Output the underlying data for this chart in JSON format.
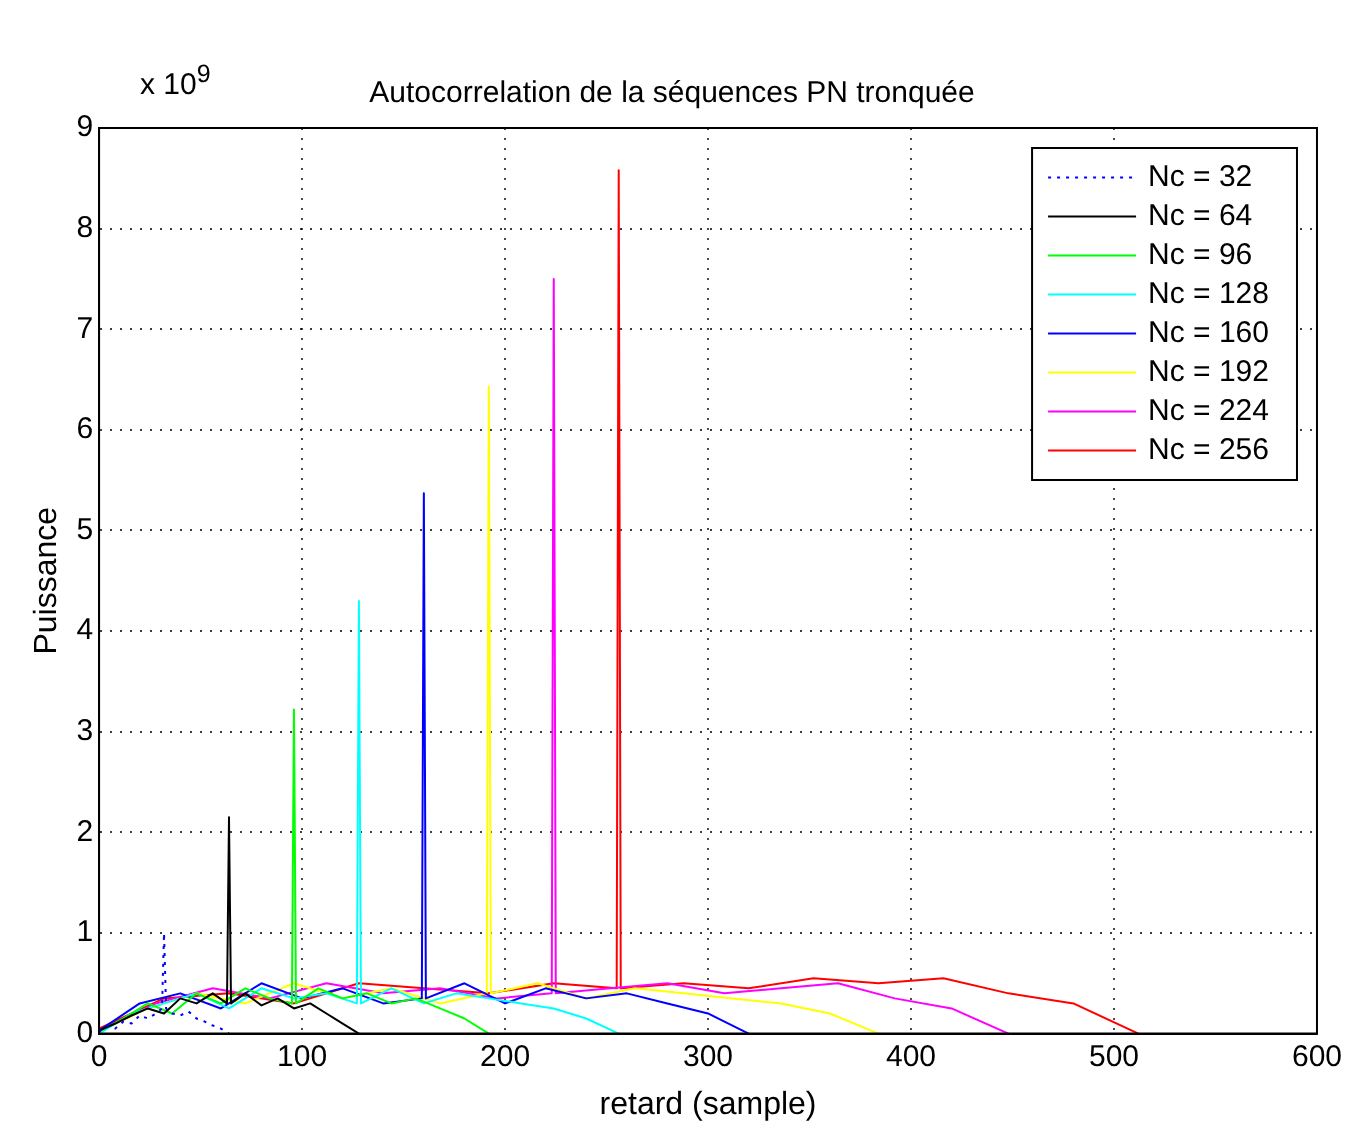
{
  "chart_data": {
    "type": "line",
    "title": "Autocorrelation de la séquences PN tronquée",
    "xlabel": "retard (sample)",
    "ylabel": "Puissance",
    "annotations": [
      "x 10$^{9}$"
    ],
    "xlim": [
      0,
      600
    ],
    "xticks": [
      0,
      100,
      200,
      300,
      400,
      500,
      600
    ],
    "ylim": [
      0,
      9
    ],
    "yticks": [
      0,
      1,
      2,
      3,
      4,
      5,
      6,
      7,
      8,
      9
    ],
    "grid": true,
    "legend": "top right",
    "series": [
      {
        "name": "Nc = 32",
        "color": "#0000ff",
        "line_style": "dotted",
        "x": [
          0,
          4,
          8,
          12,
          16,
          20,
          24,
          28,
          31,
          32,
          33,
          36,
          40,
          44,
          48,
          52,
          56,
          60,
          64
        ],
        "values": [
          0.02,
          0.08,
          0.05,
          0.12,
          0.1,
          0.18,
          0.15,
          0.2,
          0.25,
          1.0,
          0.25,
          0.2,
          0.18,
          0.22,
          0.15,
          0.12,
          0.08,
          0.05,
          0.0
        ]
      },
      {
        "name": "Nc = 64",
        "color": "#000000",
        "x": [
          0,
          8,
          16,
          24,
          32,
          40,
          48,
          56,
          63,
          64,
          65,
          72,
          80,
          88,
          96,
          104,
          112,
          120,
          128
        ],
        "values": [
          0.03,
          0.1,
          0.18,
          0.25,
          0.2,
          0.35,
          0.3,
          0.4,
          0.3,
          2.15,
          0.3,
          0.4,
          0.28,
          0.35,
          0.25,
          0.3,
          0.2,
          0.1,
          0.0
        ]
      },
      {
        "name": "Nc = 96",
        "color": "#00ff00",
        "x": [
          0,
          12,
          24,
          36,
          48,
          60,
          72,
          84,
          95,
          96,
          97,
          108,
          120,
          132,
          144,
          156,
          168,
          180,
          192
        ],
        "values": [
          0.02,
          0.15,
          0.3,
          0.2,
          0.4,
          0.3,
          0.45,
          0.35,
          0.3,
          3.22,
          0.3,
          0.45,
          0.35,
          0.4,
          0.3,
          0.35,
          0.25,
          0.15,
          0.0
        ]
      },
      {
        "name": "Nc = 128",
        "color": "#00ffff",
        "x": [
          0,
          16,
          32,
          48,
          64,
          80,
          96,
          112,
          127,
          128,
          129,
          144,
          160,
          176,
          192,
          208,
          224,
          240,
          256
        ],
        "values": [
          0.0,
          0.2,
          0.3,
          0.4,
          0.25,
          0.45,
          0.35,
          0.4,
          0.3,
          4.3,
          0.3,
          0.45,
          0.3,
          0.4,
          0.35,
          0.3,
          0.25,
          0.15,
          0.0
        ]
      },
      {
        "name": "Nc = 160",
        "color": "#0000ff",
        "x": [
          0,
          20,
          40,
          60,
          80,
          100,
          120,
          140,
          159,
          160,
          161,
          180,
          200,
          220,
          240,
          260,
          280,
          300,
          320
        ],
        "values": [
          0.03,
          0.3,
          0.4,
          0.25,
          0.5,
          0.35,
          0.45,
          0.3,
          0.35,
          5.37,
          0.35,
          0.5,
          0.3,
          0.45,
          0.35,
          0.4,
          0.3,
          0.2,
          0.0
        ]
      },
      {
        "name": "Nc = 192",
        "color": "#ffff00",
        "x": [
          0,
          24,
          48,
          72,
          96,
          120,
          144,
          168,
          191,
          192,
          193,
          216,
          240,
          264,
          288,
          312,
          336,
          360,
          384
        ],
        "values": [
          0.02,
          0.25,
          0.4,
          0.3,
          0.5,
          0.35,
          0.45,
          0.3,
          0.4,
          6.43,
          0.4,
          0.5,
          0.35,
          0.45,
          0.4,
          0.35,
          0.3,
          0.2,
          0.0
        ]
      },
      {
        "name": "Nc = 224",
        "color": "#ff00ff",
        "x": [
          0,
          28,
          56,
          84,
          112,
          140,
          168,
          196,
          223,
          224,
          225,
          252,
          280,
          308,
          336,
          364,
          392,
          420,
          448
        ],
        "values": [
          0.03,
          0.3,
          0.45,
          0.35,
          0.5,
          0.4,
          0.45,
          0.35,
          0.4,
          7.5,
          0.4,
          0.45,
          0.5,
          0.4,
          0.45,
          0.5,
          0.35,
          0.25,
          0.0
        ]
      },
      {
        "name": "Nc = 256",
        "color": "#ff0000",
        "x": [
          0,
          32,
          64,
          96,
          128,
          160,
          192,
          224,
          255,
          256,
          257,
          288,
          320,
          352,
          384,
          416,
          448,
          480,
          512
        ],
        "values": [
          0.05,
          0.35,
          0.4,
          0.3,
          0.5,
          0.45,
          0.4,
          0.5,
          0.45,
          8.58,
          0.45,
          0.5,
          0.45,
          0.55,
          0.5,
          0.55,
          0.4,
          0.3,
          0.0
        ]
      }
    ]
  }
}
